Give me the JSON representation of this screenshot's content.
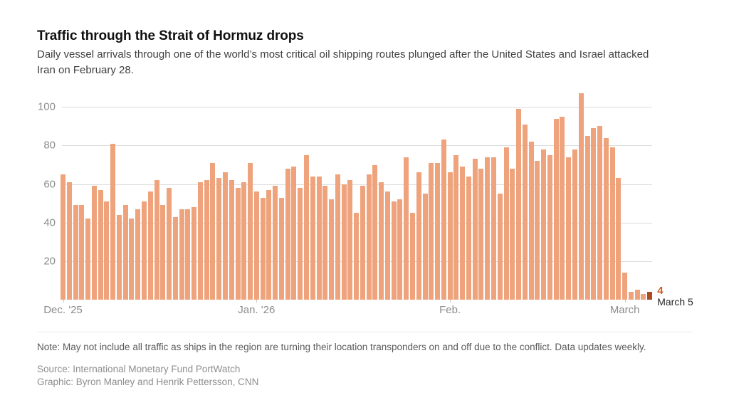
{
  "header": {
    "title": "Traffic through the Strait of Hormuz drops",
    "subtitle": "Daily vessel arrivals through one of the world’s most critical oil shipping routes plunged after the United States and Israel attacked Iran on February 28."
  },
  "chart_data": {
    "type": "bar",
    "title": "Traffic through the Strait of Hormuz drops",
    "ylabel": "Daily vessel arrivals",
    "x_range": [
      "Dec. '25",
      "March 5"
    ],
    "y_ticks": [
      20,
      40,
      60,
      80,
      100
    ],
    "ylim": [
      0,
      110
    ],
    "grid": true,
    "legend": false,
    "bar_color": "#efa37c",
    "highlight_color": "#ad4a1f",
    "annotation_color": "#cb5d27",
    "x_tick_labels": [
      {
        "label": "Dec. '25",
        "index": 0
      },
      {
        "label": "Jan. '26",
        "index": 31
      },
      {
        "label": "Feb.",
        "index": 62
      },
      {
        "label": "March",
        "index": 90
      }
    ],
    "values": [
      65,
      61,
      49,
      49,
      42,
      59,
      57,
      51,
      81,
      44,
      49,
      42,
      47,
      51,
      56,
      62,
      49,
      58,
      43,
      47,
      47,
      48,
      61,
      62,
      71,
      63,
      66,
      62,
      58,
      61,
      71,
      56,
      53,
      57,
      59,
      53,
      68,
      69,
      58,
      75,
      64,
      64,
      59,
      52,
      65,
      60,
      62,
      45,
      59,
      65,
      70,
      61,
      56,
      51,
      52,
      74,
      45,
      66,
      55,
      71,
      71,
      83,
      66,
      75,
      69,
      64,
      73,
      68,
      74,
      74,
      55,
      79,
      68,
      99,
      91,
      82,
      72,
      78,
      75,
      94,
      95,
      74,
      78,
      107,
      85,
      89,
      90,
      84,
      79,
      63,
      14,
      4,
      5,
      3,
      4
    ],
    "months_covered": [
      "December 2025",
      "January 2026",
      "February 2026",
      "March 1-5 2026"
    ],
    "highlight_index": 94,
    "annotation": {
      "value_label": "4",
      "date_label": "March 5"
    }
  },
  "footer": {
    "note": "Note: May not include all traffic as ships in the region are turning their location transponders on and off due to the conflict. Data updates weekly.",
    "source": "Source: International Monetary Fund PortWatch",
    "graphic": "Graphic: Byron Manley and Henrik Pettersson, CNN"
  }
}
